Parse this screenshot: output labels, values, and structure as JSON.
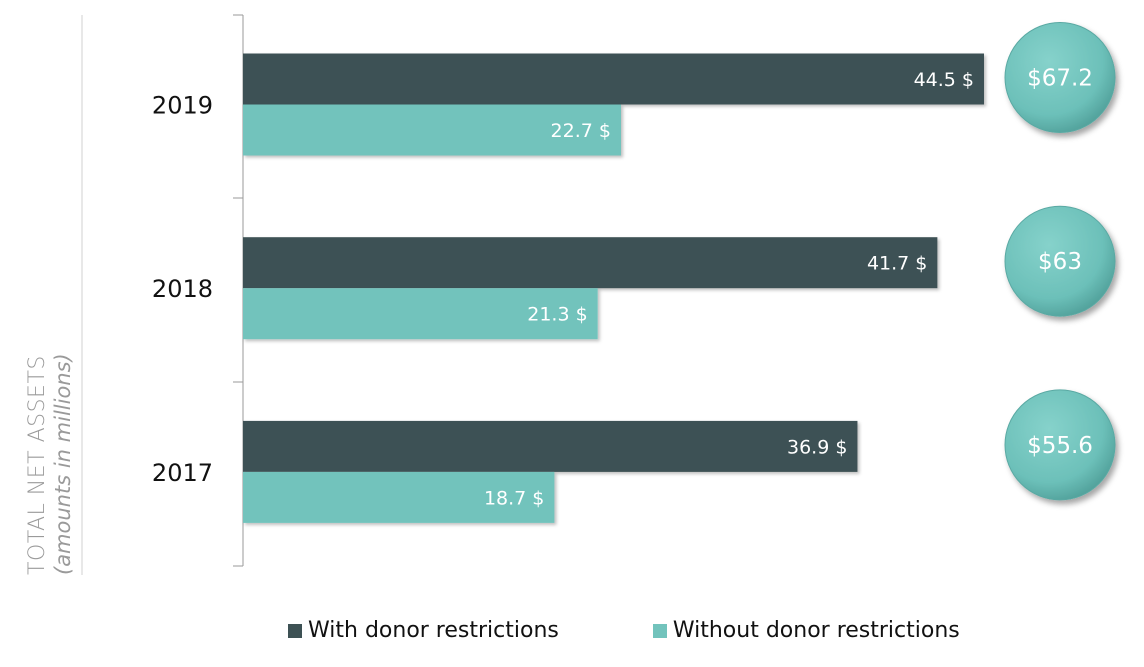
{
  "chart_data": {
    "type": "bar",
    "orientation": "horizontal",
    "ylabel": "TOTAL NET ASSETS",
    "ylabel_sub": "(amounts in millions)",
    "categories": [
      "2019",
      "2018",
      "2017"
    ],
    "series": [
      {
        "name": "With donor restrictions",
        "values": [
          44.5,
          41.7,
          36.9
        ],
        "labels": [
          "44.5 $",
          "41.7 $",
          "36.9 $"
        ],
        "color": "#3d5154"
      },
      {
        "name": "Without donor restrictions",
        "values": [
          22.7,
          21.3,
          18.7
        ],
        "labels": [
          "22.7 $",
          "21.3 $",
          "18.7 $"
        ],
        "color": "#72c3bc"
      }
    ],
    "totals": [
      "$67.2",
      "$63",
      "$55.6"
    ],
    "totals_color": "#6cc0b9",
    "grid": false,
    "legend_position": "bottom"
  }
}
